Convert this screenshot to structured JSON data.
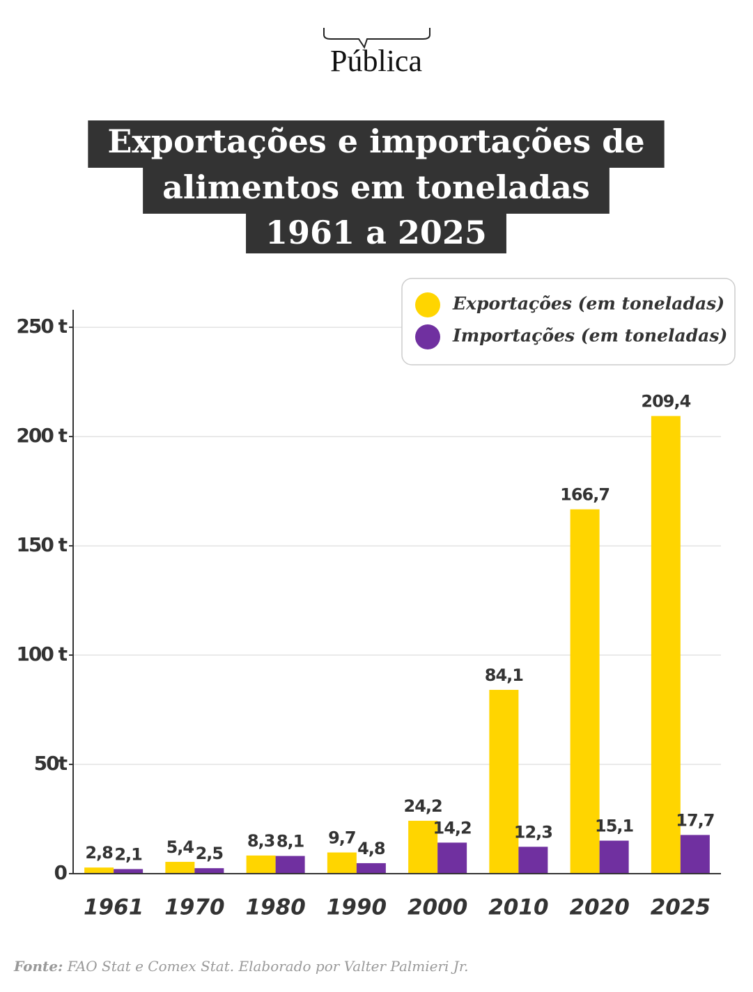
{
  "brand": "Pública",
  "chart_data": {
    "type": "bar",
    "title": [
      "Exportações e importações de",
      "alimentos em toneladas",
      "1961 a 2025"
    ],
    "categories": [
      "1961",
      "1970",
      "1980",
      "1990",
      "2000",
      "2010",
      "2020",
      "2025"
    ],
    "series": [
      {
        "name": "Exportações (em toneladas)",
        "color": "#FFD500",
        "values": [
          2.8,
          5.4,
          8.3,
          9.7,
          24.2,
          84.1,
          166.7,
          209.4
        ],
        "value_labels": [
          "2,8",
          "5,4",
          "8,3",
          "9,7",
          "24,2",
          "84,1",
          "166,7",
          "209,4"
        ]
      },
      {
        "name": "Importações (em toneladas)",
        "color": "#7030A0",
        "values": [
          2.1,
          2.5,
          8.1,
          4.8,
          14.2,
          12.3,
          15.1,
          17.7
        ],
        "value_labels": [
          "2,1",
          "2,5",
          "8,1",
          "4,8",
          "14,2",
          "12,3",
          "15,1",
          "17,7"
        ]
      }
    ],
    "ylim": [
      0,
      258
    ],
    "yticks": [
      0,
      {
        "value": 50,
        "label": "50t"
      },
      {
        "value": 100,
        "label": "100 t"
      },
      {
        "value": 150,
        "label": "150 t"
      },
      {
        "value": 200,
        "label": "200 t"
      },
      {
        "value": 250,
        "label": "250 t"
      }
    ],
    "grid": true,
    "legend": "upper right"
  },
  "source_label": "Fonte:",
  "source": "FAO Stat e Comex Stat. Elaborado por Valter Palmieri Jr."
}
